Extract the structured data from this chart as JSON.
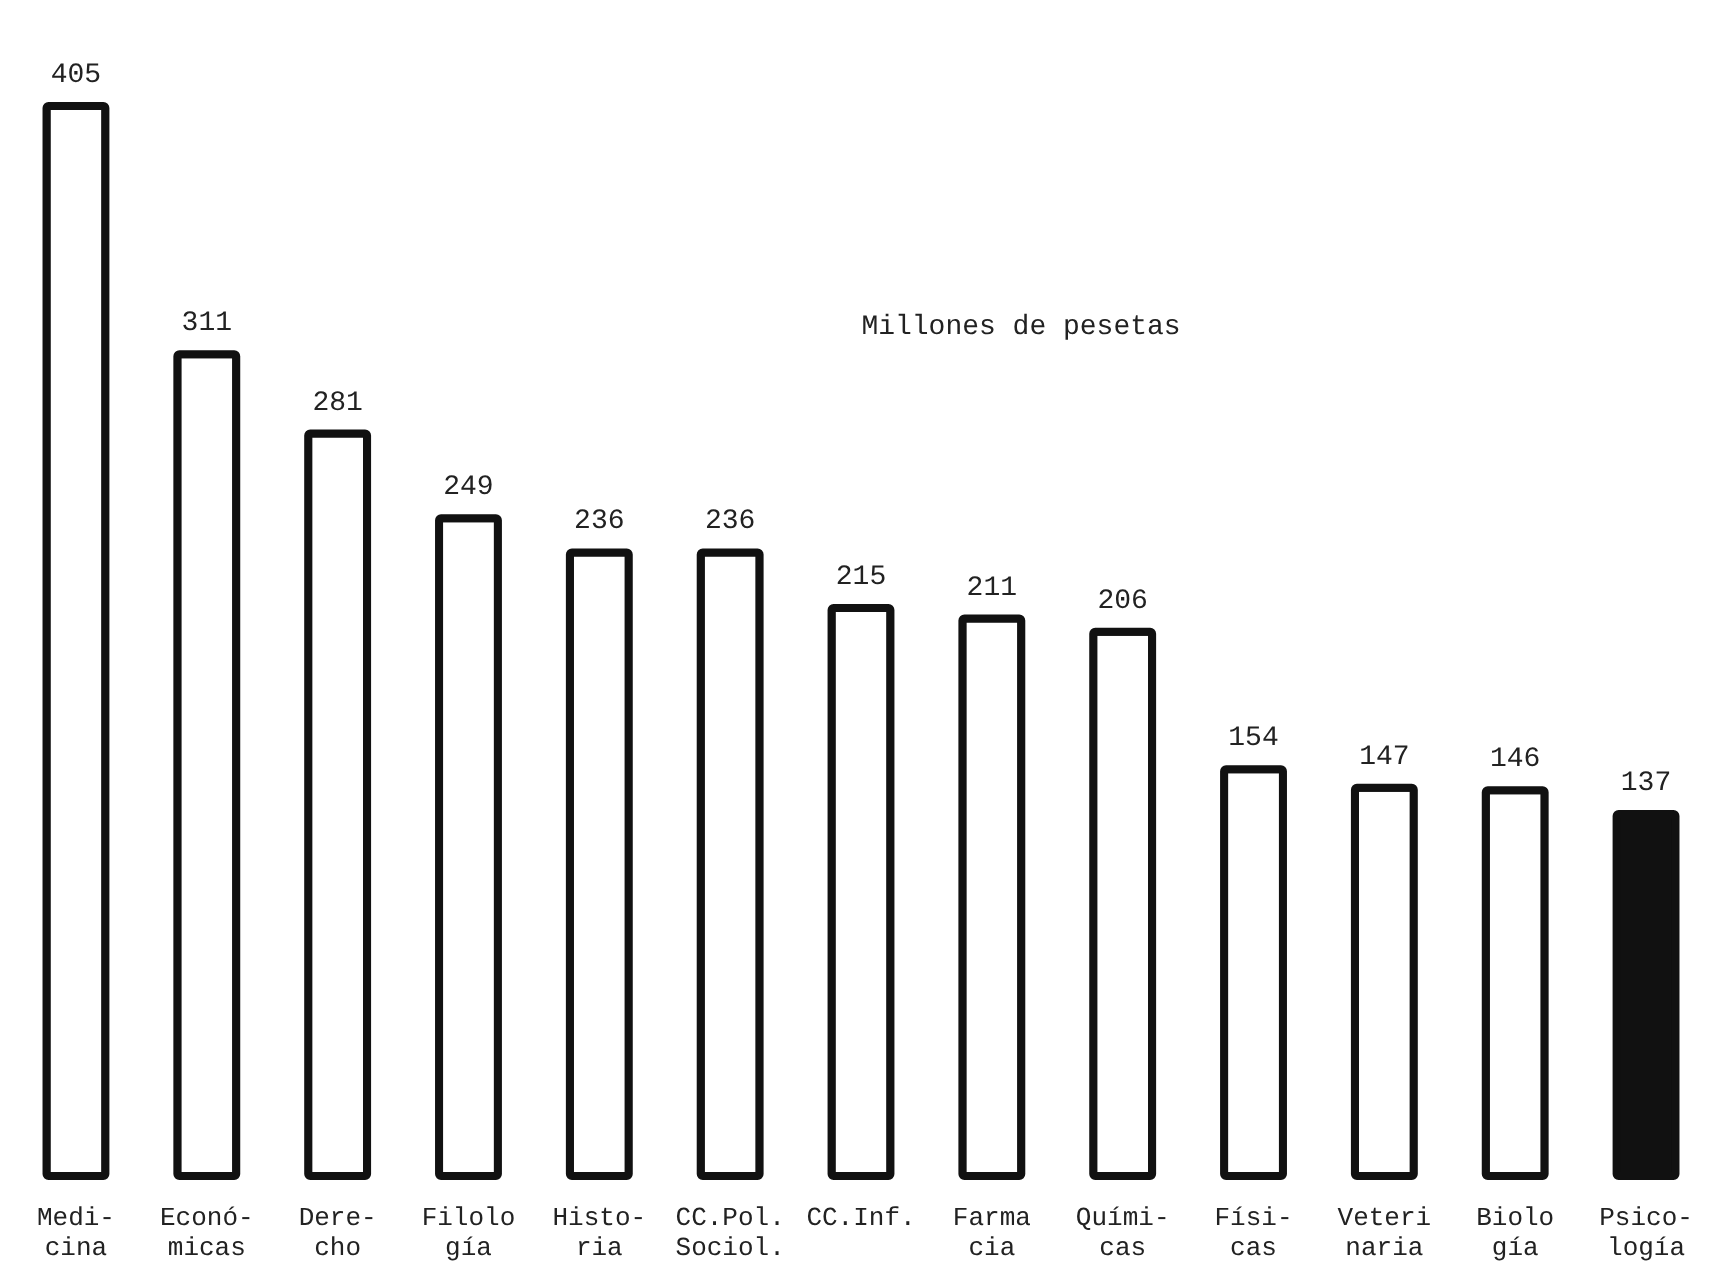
{
  "chart_data": {
    "type": "bar",
    "title": "Millones de pesetas",
    "categories": [
      "Medi-\ncina",
      "Econó-\nmicas",
      "Dere-\ncho",
      "Filolo\ngía",
      "Histo-\nria",
      "CC.Pol.\nSociol.",
      "CC.Inf.",
      "Farma\ncia",
      "Quími-\ncas",
      "Físi-\ncas",
      "Veteri\nnaria",
      "Biolo\ngía",
      "Psico-\nlogía"
    ],
    "values": [
      405,
      311,
      281,
      249,
      236,
      236,
      215,
      211,
      206,
      154,
      147,
      146,
      137
    ],
    "colors": [
      "#ffffff",
      "#ffffff",
      "#ffffff",
      "#ffffff",
      "#ffffff",
      "#ffffff",
      "#ffffff",
      "#ffffff",
      "#ffffff",
      "#ffffff",
      "#ffffff",
      "#ffffff",
      "#111111"
    ],
    "data_labels": true
  }
}
